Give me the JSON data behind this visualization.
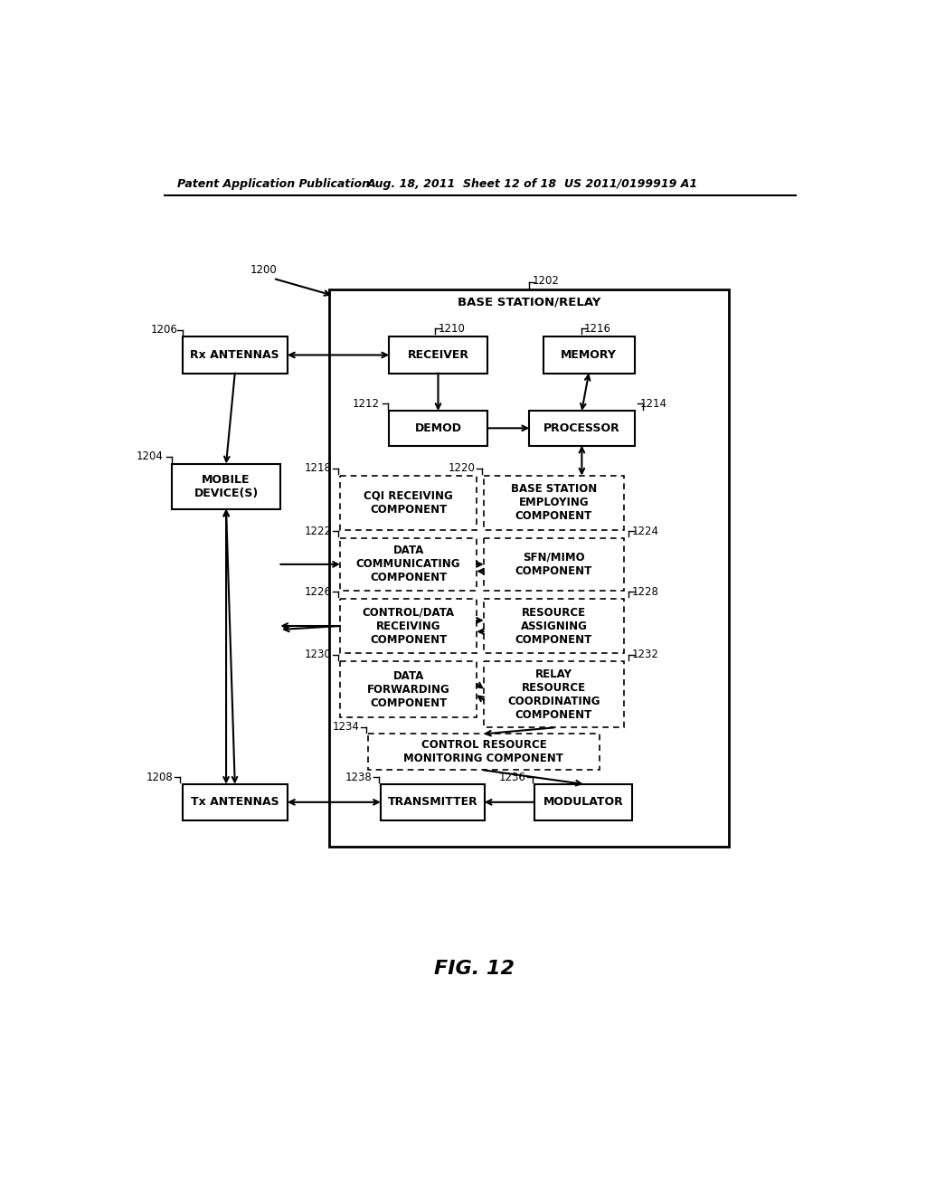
{
  "header_left": "Patent Application Publication",
  "header_mid": "Aug. 18, 2011  Sheet 12 of 18",
  "header_right": "US 2011/0199919 A1",
  "fig_label": "FIG. 12",
  "bg_color": "#ffffff",
  "line_color": "#000000"
}
